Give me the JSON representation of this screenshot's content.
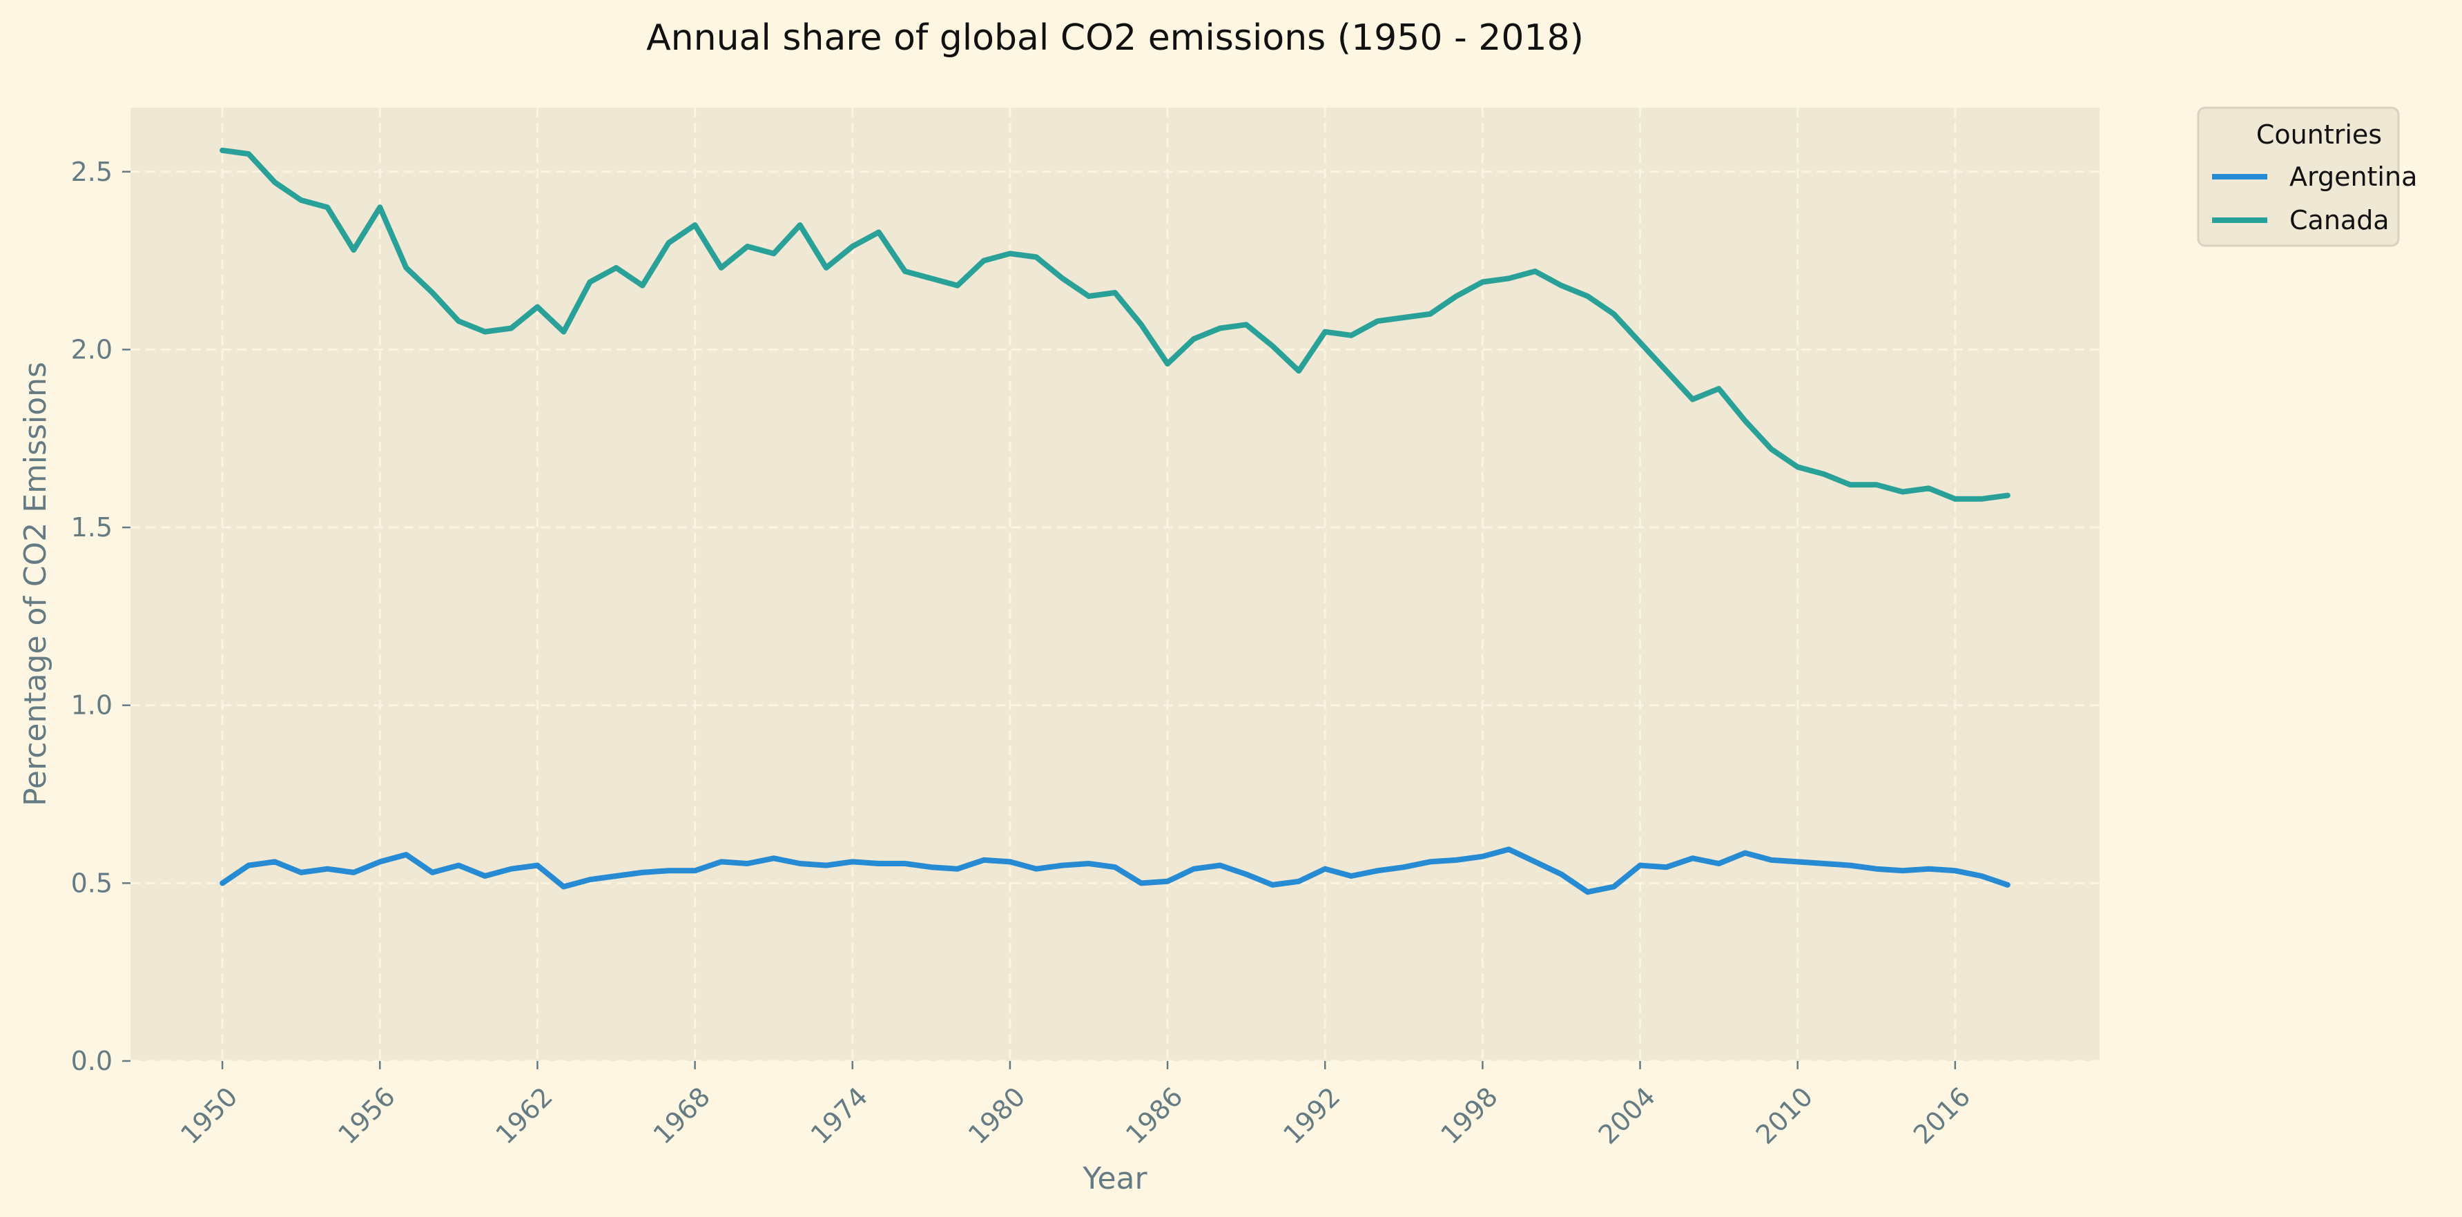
{
  "chart_data": {
    "type": "line",
    "title": "Annual share of global CO2 emissions (1950 - 2018)",
    "xlabel": "Year",
    "ylabel": "Percentage of CO2 Emissions",
    "xlim": [
      1946.5,
      2021.5
    ],
    "ylim": [
      0,
      2.68
    ],
    "xticks": [
      1950,
      1956,
      1962,
      1968,
      1974,
      1980,
      1986,
      1992,
      1998,
      2004,
      2010,
      2016
    ],
    "yticks": [
      0.0,
      0.5,
      1.0,
      1.5,
      2.0,
      2.5
    ],
    "ytick_labels": [
      "0.0",
      "0.5",
      "1.0",
      "1.5",
      "2.0",
      "2.5"
    ],
    "grid": true,
    "legend": {
      "title": "Countries",
      "placement": "outside-top-right"
    },
    "x": [
      1950,
      1951,
      1952,
      1953,
      1954,
      1955,
      1956,
      1957,
      1958,
      1959,
      1960,
      1961,
      1962,
      1963,
      1964,
      1965,
      1966,
      1967,
      1968,
      1969,
      1970,
      1971,
      1972,
      1973,
      1974,
      1975,
      1976,
      1977,
      1978,
      1979,
      1980,
      1981,
      1982,
      1983,
      1984,
      1985,
      1986,
      1987,
      1988,
      1989,
      1990,
      1991,
      1992,
      1993,
      1994,
      1995,
      1996,
      1997,
      1998,
      1999,
      2000,
      2001,
      2002,
      2003,
      2004,
      2005,
      2006,
      2007,
      2008,
      2009,
      2010,
      2011,
      2012,
      2013,
      2014,
      2015,
      2016,
      2017,
      2018
    ],
    "series": [
      {
        "name": "Argentina",
        "color": "#268bd2",
        "values": [
          0.5,
          0.55,
          0.56,
          0.53,
          0.54,
          0.53,
          0.56,
          0.58,
          0.53,
          0.55,
          0.52,
          0.54,
          0.55,
          0.49,
          0.51,
          0.52,
          0.53,
          0.535,
          0.535,
          0.56,
          0.555,
          0.57,
          0.555,
          0.55,
          0.56,
          0.555,
          0.555,
          0.545,
          0.54,
          0.565,
          0.56,
          0.54,
          0.55,
          0.555,
          0.545,
          0.5,
          0.505,
          0.54,
          0.55,
          0.525,
          0.495,
          0.505,
          0.54,
          0.52,
          0.535,
          0.545,
          0.56,
          0.565,
          0.575,
          0.595,
          0.56,
          0.525,
          0.475,
          0.49,
          0.55,
          0.545,
          0.57,
          0.555,
          0.585,
          0.565,
          0.56,
          0.555,
          0.55,
          0.54,
          0.535,
          0.54,
          0.535,
          0.52,
          0.495
        ]
      },
      {
        "name": "Canada",
        "color": "#2aa198",
        "values": [
          2.56,
          2.55,
          2.47,
          2.42,
          2.4,
          2.28,
          2.4,
          2.23,
          2.16,
          2.08,
          2.05,
          2.06,
          2.12,
          2.05,
          2.19,
          2.23,
          2.18,
          2.3,
          2.35,
          2.23,
          2.29,
          2.27,
          2.35,
          2.23,
          2.29,
          2.33,
          2.22,
          2.2,
          2.18,
          2.25,
          2.27,
          2.26,
          2.2,
          2.15,
          2.16,
          2.07,
          1.96,
          2.03,
          2.06,
          2.07,
          2.01,
          1.94,
          2.05,
          2.04,
          2.08,
          2.09,
          2.1,
          2.15,
          2.19,
          2.2,
          2.22,
          2.18,
          2.15,
          2.1,
          2.02,
          1.94,
          1.86,
          1.89,
          1.8,
          1.72,
          1.67,
          1.65,
          1.62,
          1.62,
          1.6,
          1.61,
          1.58,
          1.58,
          1.59
        ]
      }
    ]
  }
}
